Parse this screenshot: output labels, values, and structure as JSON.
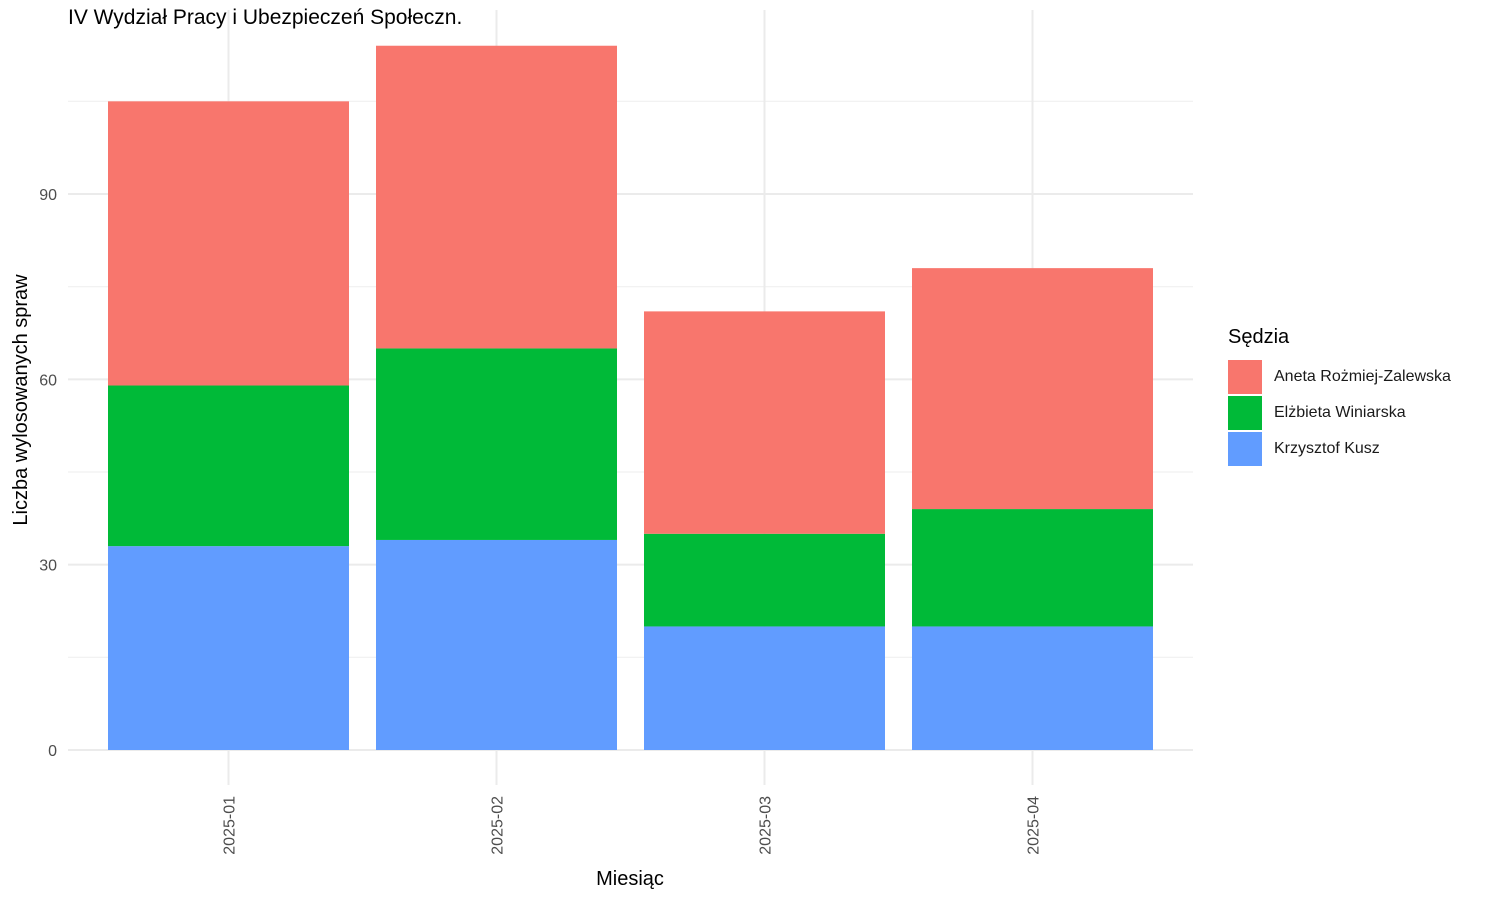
{
  "chart_data": {
    "type": "bar",
    "stacked": true,
    "title": "IV Wydział Pracy i Ubezpieczeń Społeczn.",
    "xlabel": "Miesiąc",
    "ylabel": "Liczba wylosowanych spraw",
    "categories": [
      "2025-01",
      "2025-02",
      "2025-03",
      "2025-04"
    ],
    "ylim": [
      0,
      119
    ],
    "yticks": [
      0,
      30,
      60,
      90
    ],
    "grid": true,
    "legend": {
      "title": "Sędzia",
      "position": "right"
    },
    "series": [
      {
        "name": "Krzysztof Kusz",
        "color": "#619CFF",
        "values": [
          33,
          34,
          20,
          20
        ]
      },
      {
        "name": "Elżbieta Winiarska",
        "color": "#00BA38",
        "values": [
          26,
          31,
          15,
          19
        ]
      },
      {
        "name": "Aneta Rożmiej-Zalewska",
        "color": "#F8766D",
        "values": [
          46,
          49,
          36,
          39
        ]
      }
    ],
    "legend_order": [
      "Aneta Rożmiej-Zalewska",
      "Elżbieta Winiarska",
      "Krzysztof Kusz"
    ]
  }
}
